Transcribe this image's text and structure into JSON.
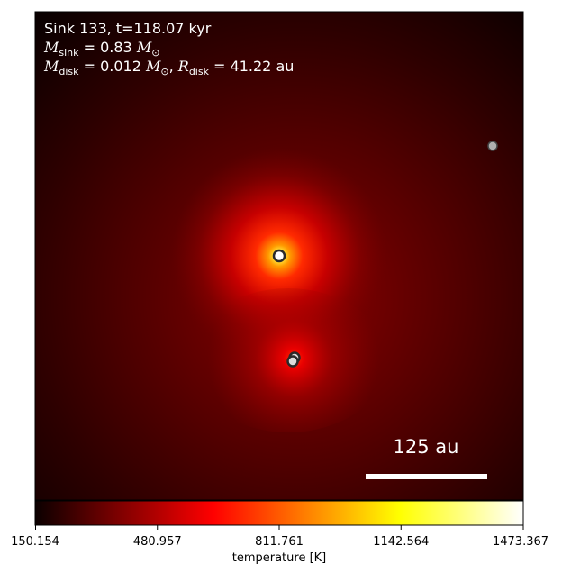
{
  "annotation": {
    "line1": "Sink 133, t=118.07 kyr",
    "msink_symbol": "M",
    "msink_sub": "sink",
    "msink_value": " = 0.83 ",
    "msink_unit": "M",
    "msink_unit_sub": "⊙",
    "mdisk_symbol": "M",
    "mdisk_sub": "disk",
    "mdisk_value": " = 0.012 ",
    "mdisk_unit": "M",
    "mdisk_unit_sub": "⊙",
    "mdisk_sep": ", ",
    "rdisk_symbol": "R",
    "rdisk_sub": "disk",
    "rdisk_value": " = 41.22 au"
  },
  "scale_bar": {
    "label": "125 au"
  },
  "colorbar": {
    "label": "temperature [K]",
    "ticks": [
      "150.154",
      "480.957",
      "811.761",
      "1142.564",
      "1473.367"
    ],
    "min": 150.154,
    "max": 1473.367,
    "colormap": "hot"
  },
  "colors": {
    "background": "#1a0000",
    "axes_frame": "#000000",
    "annotation_text": "#ffffff"
  }
}
